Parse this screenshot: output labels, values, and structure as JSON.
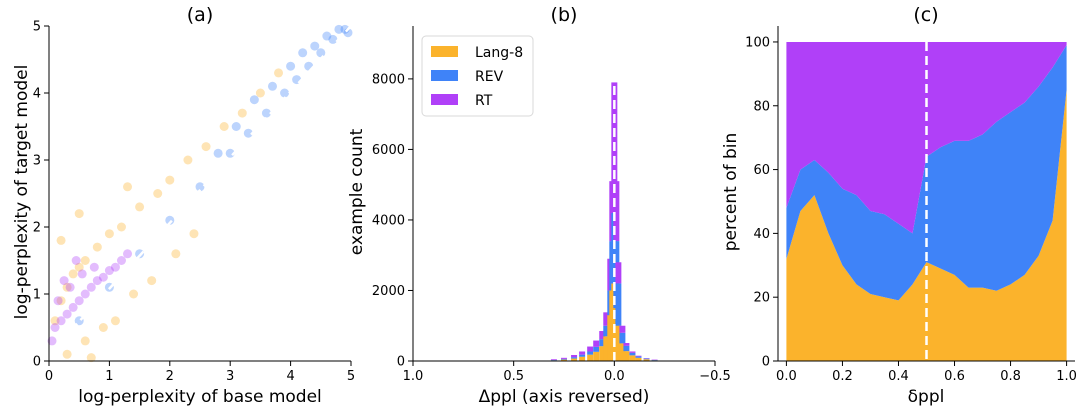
{
  "chart_data": [
    {
      "type": "scatter",
      "title": "(a)",
      "xlabel": "log-perplexity of base model",
      "ylabel": "log-perplexity of target model",
      "xlim": [
        0,
        5
      ],
      "ylim": [
        0,
        5
      ],
      "xticks": [
        "0",
        "1",
        "2",
        "3",
        "4",
        "5"
      ],
      "yticks": [
        "0",
        "1",
        "2",
        "3",
        "4",
        "5"
      ],
      "reference_line": {
        "style": "dashed",
        "color": "#ffffff",
        "from": [
          0.05,
          0.15
        ],
        "to": [
          5.0,
          5.0
        ]
      },
      "series": [
        {
          "name": "Lang-8",
          "color": "#fbb32c",
          "x": [
            0.1,
            0.2,
            0.3,
            0.4,
            0.5,
            0.6,
            0.8,
            1.0,
            1.2,
            1.5,
            1.8,
            2.0,
            2.3,
            2.6,
            2.9,
            3.2,
            3.5,
            3.8,
            0.3,
            0.6,
            0.9,
            1.1,
            1.4,
            1.7,
            2.1,
            2.4,
            0.5,
            1.3,
            0.2,
            0.7
          ],
          "y": [
            0.6,
            0.9,
            1.1,
            1.3,
            1.4,
            1.5,
            1.7,
            1.9,
            2.0,
            2.3,
            2.5,
            2.7,
            3.0,
            3.2,
            3.5,
            3.7,
            4.0,
            4.3,
            0.1,
            0.3,
            0.5,
            0.6,
            1.0,
            1.2,
            1.6,
            1.9,
            2.2,
            2.6,
            1.8,
            0.05
          ]
        },
        {
          "name": "REV",
          "color": "#3f83f8",
          "x": [
            0.5,
            1.0,
            1.5,
            2.0,
            2.5,
            3.0,
            3.3,
            3.6,
            3.9,
            4.1,
            4.3,
            4.5,
            4.7,
            4.9,
            2.8,
            3.1,
            3.4,
            3.7,
            4.0,
            4.2,
            4.4,
            4.6,
            4.8,
            4.95
          ],
          "y": [
            0.6,
            1.1,
            1.6,
            2.1,
            2.6,
            3.1,
            3.4,
            3.7,
            4.0,
            4.2,
            4.4,
            4.6,
            4.8,
            4.95,
            3.1,
            3.5,
            3.9,
            4.1,
            4.4,
            4.6,
            4.7,
            4.85,
            4.95,
            4.9
          ]
        },
        {
          "name": "RT",
          "color": "#b040f8",
          "x": [
            0.05,
            0.1,
            0.2,
            0.3,
            0.4,
            0.5,
            0.6,
            0.7,
            0.8,
            0.9,
            1.0,
            1.1,
            1.2,
            1.3,
            0.15,
            0.35,
            0.55,
            0.75,
            0.25,
            0.45
          ],
          "y": [
            0.3,
            0.5,
            0.6,
            0.7,
            0.8,
            0.9,
            1.0,
            1.1,
            1.2,
            1.25,
            1.35,
            1.4,
            1.5,
            1.6,
            0.9,
            1.1,
            1.3,
            1.4,
            1.2,
            1.5
          ]
        }
      ]
    },
    {
      "type": "bar",
      "subtype": "stacked-histogram",
      "title": "(b)",
      "xlabel": "Δppl (axis reversed)",
      "ylabel": "example count",
      "xlim": [
        1.0,
        -0.5
      ],
      "ylim": [
        0,
        9500
      ],
      "xticks": [
        "1.0",
        "0.5",
        "0.0",
        "−0.5"
      ],
      "yticks": [
        "0",
        "2000",
        "4000",
        "6000",
        "8000"
      ],
      "reference_line": {
        "style": "dashed",
        "color": "#ffffff",
        "x": 0.0
      },
      "legend": {
        "position": "top-left",
        "entries": [
          "Lang-8",
          "REV",
          "RT"
        ]
      },
      "bins": [
        0.3,
        0.25,
        0.2,
        0.16,
        0.12,
        0.09,
        0.06,
        0.04,
        0.02,
        0.01,
        0.0,
        -0.01,
        -0.02,
        -0.04,
        -0.06,
        -0.09,
        -0.12,
        -0.16,
        -0.2
      ],
      "series": [
        {
          "name": "Lang-8",
          "color": "#fbb32c",
          "values": [
            20,
            40,
            70,
            120,
            180,
            260,
            420,
            700,
            1300,
            2000,
            2200,
            1500,
            1000,
            500,
            280,
            160,
            90,
            50,
            20
          ]
        },
        {
          "name": "REV",
          "color": "#3f83f8",
          "values": [
            10,
            20,
            40,
            60,
            90,
            140,
            200,
            300,
            700,
            1400,
            2000,
            1900,
            1200,
            300,
            150,
            70,
            40,
            20,
            10
          ]
        },
        {
          "name": "RT",
          "color": "#b040f8",
          "values": [
            20,
            30,
            60,
            90,
            140,
            180,
            230,
            380,
            900,
            1700,
            3700,
            1700,
            600,
            200,
            80,
            40,
            20,
            10,
            10
          ]
        }
      ]
    },
    {
      "type": "area",
      "subtype": "stacked-percent-histogram",
      "title": "(c)",
      "xlabel": "δppl",
      "ylabel": "percent of bin",
      "xlim": [
        -0.03,
        1.03
      ],
      "ylim": [
        0,
        105
      ],
      "xticks": [
        "0.0",
        "0.2",
        "0.4",
        "0.6",
        "0.8",
        "1.0"
      ],
      "yticks": [
        "0",
        "20",
        "40",
        "60",
        "80",
        "100"
      ],
      "reference_line": {
        "style": "dashed",
        "color": "#ffffff",
        "x": 0.5
      },
      "x": [
        0.0,
        0.05,
        0.1,
        0.15,
        0.2,
        0.25,
        0.3,
        0.35,
        0.4,
        0.45,
        0.5,
        0.55,
        0.6,
        0.65,
        0.7,
        0.75,
        0.8,
        0.85,
        0.9,
        0.95,
        1.0
      ],
      "series": [
        {
          "name": "Lang-8",
          "color": "#fbb32c",
          "values": [
            32,
            47,
            52,
            40,
            30,
            24,
            21,
            20,
            19,
            24,
            31,
            29,
            27,
            23,
            23,
            22,
            24,
            27,
            33,
            44,
            85
          ]
        },
        {
          "name": "REV",
          "color": "#3f83f8",
          "values": [
            16,
            13,
            11,
            19,
            24,
            28,
            26,
            26,
            24,
            16,
            33,
            38,
            42,
            46,
            48,
            53,
            54,
            54,
            53,
            48,
            14
          ]
        },
        {
          "name": "RT",
          "color": "#b040f8",
          "values": [
            52,
            40,
            37,
            41,
            46,
            48,
            53,
            54,
            57,
            60,
            36,
            33,
            31,
            31,
            29,
            25,
            22,
            19,
            14,
            8,
            1
          ]
        }
      ]
    }
  ]
}
